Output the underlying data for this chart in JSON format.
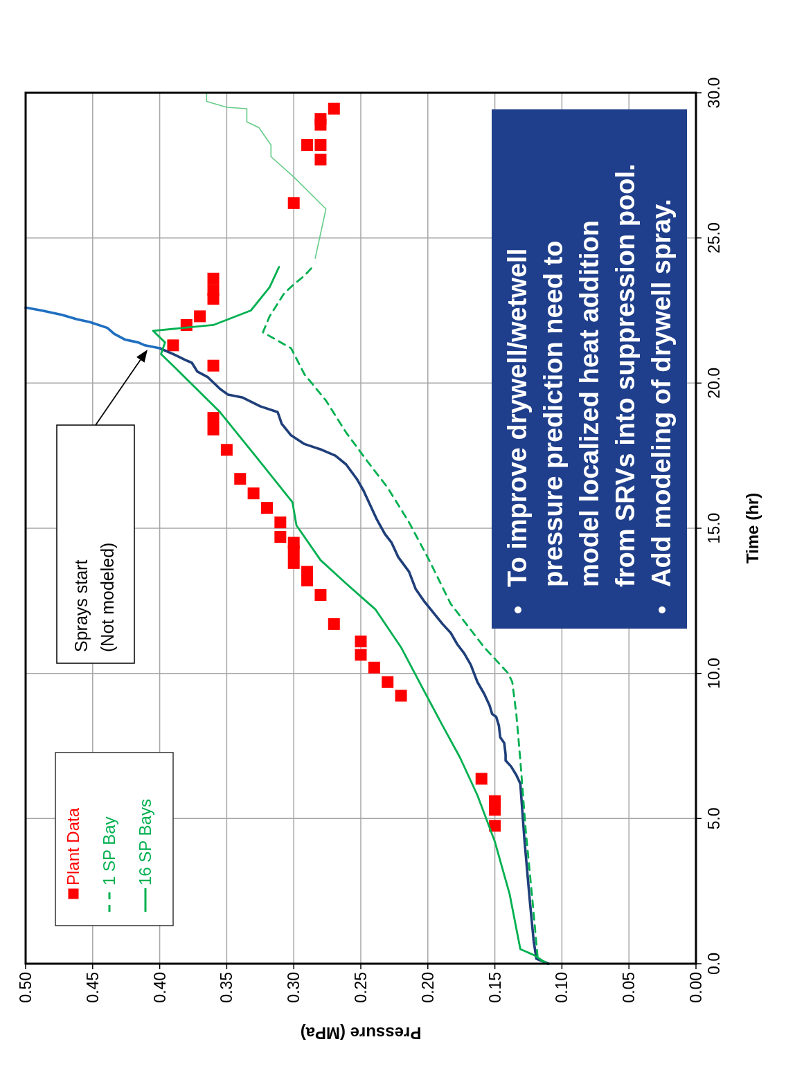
{
  "chart_data": {
    "type": "line",
    "xlabel": "Pressure (MPa)",
    "ylabel": "Time (hr)",
    "xlim": [
      0.5,
      0
    ],
    "xticks": [
      {
        "value": 0.5,
        "label": "0.50"
      },
      {
        "value": 0.45,
        "label": "0.45"
      },
      {
        "value": 0.4,
        "label": "0.40"
      },
      {
        "value": 0.35,
        "label": "0.35"
      },
      {
        "value": 0.3,
        "label": "0.30"
      },
      {
        "value": 0.25,
        "label": "0.25"
      },
      {
        "value": 0.2,
        "label": "0.20"
      },
      {
        "value": 0.15,
        "label": "0.15"
      },
      {
        "value": 0.1,
        "label": "0.10"
      },
      {
        "value": 0.05,
        "label": "0.05"
      },
      {
        "value": 0,
        "label": "0.00"
      }
    ],
    "ylim": [
      0,
      30
    ],
    "yticks": [
      {
        "value": 0,
        "label": "0.0"
      },
      {
        "value": 5,
        "label": "5.0"
      },
      {
        "value": 10,
        "label": "10.0"
      },
      {
        "value": 15,
        "label": "15.0"
      },
      {
        "value": 20,
        "label": "20.0"
      },
      {
        "value": 25,
        "label": "25.0"
      },
      {
        "value": 30,
        "label": "30.0"
      }
    ],
    "grid": true,
    "legend": "bottom left",
    "annotations": [
      "Sprays start\n(Not modeled)",
      "To improve drywell/wetwell pressure prediction need to model localized heat addition from SRVs into suppression pool.",
      "Add modeling of drywell spray."
    ],
    "series": [
      {
        "name": "Plant Data",
        "type": "scatter",
        "marker": "square",
        "color": "#ff0000",
        "values": [
          4.75,
          5.3,
          5.6,
          6.37,
          9.23,
          9.7,
          10.2,
          10.64,
          11.1,
          11.7,
          12.7,
          13.2,
          13.5,
          13.8,
          14.2,
          14.5,
          14.7,
          15.2,
          15.7,
          16.2,
          16.7,
          17.7,
          18.4,
          18.8,
          20.6,
          21.3,
          22.0,
          22.3,
          22.9,
          23.2,
          23.6,
          26.2,
          27.7,
          28.2,
          28.2,
          28.9,
          29.1,
          29.45
        ],
        "x": [
          0.15,
          0.15,
          0.15,
          0.16,
          0.22,
          0.23,
          0.24,
          0.25,
          0.25,
          0.27,
          0.28,
          0.29,
          0.29,
          0.3,
          0.3,
          0.3,
          0.31,
          0.31,
          0.32,
          0.33,
          0.34,
          0.35,
          0.36,
          0.36,
          0.36,
          0.39,
          0.38,
          0.37,
          0.36,
          0.36,
          0.36,
          0.3,
          0.28,
          0.29,
          0.28,
          0.28,
          0.28,
          0.27
        ]
      },
      {
        "line_style": "solid",
        "color": "#1f3f7a",
        "values": [
          0,
          0.17,
          0.76,
          2.2,
          4.3,
          6.2,
          6.5,
          6.8,
          7.0,
          7.2,
          7.6,
          7.8,
          8.2,
          8.5,
          8.6,
          8.9,
          9.3,
          9.7,
          10.3,
          10.7,
          11.0,
          11.4,
          11.7,
          12.1,
          12.5,
          12.9,
          13.5,
          14.0,
          14.5,
          14.8,
          15.3,
          15.8,
          16.3,
          16.7,
          17.2,
          17.5,
          17.7,
          17.9,
          18.2,
          18.6,
          19.0,
          19.2,
          19.5,
          19.6,
          19.8,
          20.2,
          20.4,
          20.7,
          20.8,
          21.0,
          21.2
        ],
        "x": [
          0.11,
          0.119,
          0.121,
          0.124,
          0.128,
          0.131,
          0.134,
          0.138,
          0.142,
          0.142,
          0.143,
          0.146,
          0.147,
          0.149,
          0.152,
          0.154,
          0.158,
          0.163,
          0.168,
          0.173,
          0.178,
          0.183,
          0.189,
          0.196,
          0.203,
          0.209,
          0.214,
          0.222,
          0.227,
          0.232,
          0.238,
          0.243,
          0.248,
          0.253,
          0.261,
          0.269,
          0.279,
          0.292,
          0.302,
          0.309,
          0.312,
          0.325,
          0.338,
          0.349,
          0.355,
          0.364,
          0.372,
          0.376,
          0.381,
          0.39,
          0.4
        ]
      },
      {
        "line_style": "solid",
        "color": "#1f6fc0",
        "values": [
          21.2,
          21.3,
          21.4,
          21.5,
          21.7,
          21.9,
          22.1,
          22.2,
          22.35,
          22.5,
          22.6
        ],
        "x": [
          0.4,
          0.411,
          0.416,
          0.426,
          0.434,
          0.439,
          0.452,
          0.462,
          0.473,
          0.488,
          0.5
        ]
      },
      {
        "name": "1 SP Bay",
        "line_style": "dashed",
        "color": "#00b050",
        "values": [
          0,
          0.17,
          2.2,
          4.6,
          7.0,
          8.6,
          9.7,
          10.0,
          10.9,
          11.5,
          12.4,
          13.9,
          15.2,
          16.4,
          17.3,
          18.3,
          19.4,
          20.3,
          21.2,
          21.75,
          22.3,
          23.1,
          23.4,
          23.7,
          24.0
        ],
        "x": [
          0.111,
          0.118,
          0.122,
          0.127,
          0.131,
          0.134,
          0.137,
          0.14,
          0.158,
          0.168,
          0.183,
          0.199,
          0.214,
          0.23,
          0.245,
          0.261,
          0.276,
          0.292,
          0.302,
          0.323,
          0.318,
          0.307,
          0.3,
          0.292,
          0.286
        ]
      },
      {
        "name": "16 SP Bays",
        "line_style": "solid",
        "color": "#00b050",
        "values": [
          0,
          0.3,
          0.5,
          2.4,
          4.2,
          5.8,
          7.1,
          8.2,
          9.5,
          10.9,
          12.2,
          13.1,
          13.9,
          15.1,
          15.9,
          17.4,
          19.0,
          20.6,
          21.0,
          21.4,
          21.8,
          22.0,
          22.5,
          23.3,
          24.0
        ],
        "x": [
          0.111,
          0.121,
          0.131,
          0.139,
          0.15,
          0.163,
          0.176,
          0.189,
          0.204,
          0.22,
          0.239,
          0.261,
          0.28,
          0.298,
          0.301,
          0.327,
          0.355,
          0.39,
          0.399,
          0.396,
          0.405,
          0.36,
          0.332,
          0.318,
          0.311
        ]
      },
      {
        "line_style": "solid",
        "color": "#66cc88",
        "values": [
          24.3,
          26.0,
          27.1,
          27.8,
          28.2,
          28.8,
          29.0,
          29.45,
          29.5,
          29.7,
          30.0
        ],
        "x": [
          0.284,
          0.276,
          0.3,
          0.317,
          0.317,
          0.326,
          0.335,
          0.335,
          0.35,
          0.365,
          0.365
        ]
      }
    ]
  }
}
